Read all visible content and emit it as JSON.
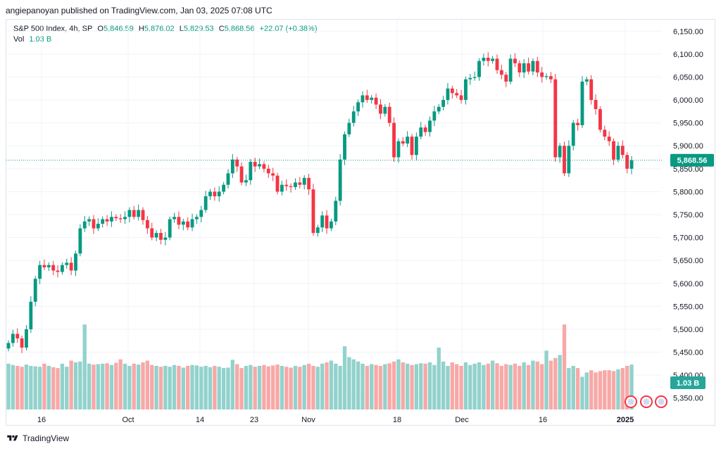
{
  "header": {
    "publisher_text": "angiepanoyan published on TradingView.com, Jan 03, 2025 07:08 UTC"
  },
  "legend": {
    "symbol": "S&P 500 Index, 4h, SP",
    "open_label": "O",
    "open": "5,846.59",
    "high_label": "H",
    "high": "5,876.02",
    "low_label": "L",
    "low": "5,829.53",
    "close_label": "C",
    "close": "5,868.56",
    "change": "+22.07 (+0.38%)",
    "vol_label": "Vol",
    "vol_value": "1.03 B"
  },
  "footer": {
    "brand": "TradingView",
    "logo_icon": "tradingview-logo-icon"
  },
  "colors": {
    "up": "#089981",
    "down": "#f23645",
    "vol_up": "#92d2cc",
    "vol_down": "#f7a9a7",
    "grid": "#f0f3fa"
  },
  "chart_data": {
    "type": "candlestick",
    "title": "S&P 500 Index, 4h, SP",
    "price_axis_ticks": [
      "6,150.00",
      "6,100.00",
      "6,050.00",
      "6,000.00",
      "5,950.00",
      "5,900.00",
      "5,850.00",
      "5,800.00",
      "5,750.00",
      "5,700.00",
      "5,650.00",
      "5,600.00",
      "5,550.00",
      "5,500.00",
      "5,450.00",
      "5,400.00",
      "5,350.00"
    ],
    "last_price_label": "5,868.56",
    "last_volume_label": "1.03 B",
    "ylim": [
      5325,
      6175
    ],
    "time_axis_labels": [
      "16",
      "Oct",
      "14",
      "23",
      "Nov",
      "18",
      "Dec",
      "16",
      "2025"
    ],
    "close": [
      5470,
      5490,
      5480,
      5460,
      5500,
      5560,
      5610,
      5640,
      5635,
      5640,
      5628,
      5625,
      5640,
      5645,
      5628,
      5665,
      5720,
      5735,
      5740,
      5720,
      5730,
      5740,
      5735,
      5745,
      5742,
      5740,
      5745,
      5760,
      5745,
      5760,
      5738,
      5720,
      5700,
      5710,
      5695,
      5700,
      5740,
      5745,
      5728,
      5735,
      5722,
      5740,
      5745,
      5760,
      5790,
      5800,
      5790,
      5800,
      5815,
      5840,
      5870,
      5855,
      5820,
      5825,
      5865,
      5855,
      5860,
      5850,
      5840,
      5835,
      5800,
      5815,
      5812,
      5810,
      5820,
      5815,
      5830,
      5805,
      5710,
      5722,
      5748,
      5720,
      5735,
      5780,
      5870,
      5925,
      5950,
      5975,
      5995,
      6010,
      6000,
      6005,
      5990,
      5970,
      5985,
      5950,
      5875,
      5910,
      5905,
      5920,
      5880,
      5920,
      5940,
      5930,
      5955,
      5975,
      5985,
      6000,
      6025,
      6015,
      6010,
      6000,
      6045,
      6048,
      6050,
      6085,
      6092,
      6085,
      6090,
      6065,
      6055,
      6040,
      6090,
      6080,
      6060,
      6080,
      6062,
      6085,
      6060,
      6050,
      6052,
      6045,
      5875,
      5900,
      5840,
      5900,
      5950,
      5945,
      6040,
      6045,
      6000,
      5980,
      5935,
      5920,
      5910,
      5870,
      5900,
      5880,
      5850,
      5868.56
    ],
    "volume_bn": [
      1.05,
      1.02,
      1.0,
      0.98,
      1.03,
      1.0,
      0.99,
      0.98,
      1.05,
      1.0,
      0.97,
      0.95,
      1.05,
      0.98,
      1.12,
      1.08,
      1.1,
      1.95,
      1.05,
      1.03,
      1.04,
      1.05,
      1.06,
      1.02,
      1.07,
      1.15,
      1.05,
      1.0,
      1.05,
      1.03,
      1.08,
      1.12,
      1.02,
      1.0,
      0.98,
      1.0,
      0.98,
      1.02,
      1.0,
      0.96,
      1.0,
      1.02,
      1.01,
      0.98,
      1.0,
      0.97,
      1.0,
      0.98,
      0.95,
      0.96,
      1.14,
      1.04,
      0.95,
      1.0,
      1.02,
      0.98,
      1.0,
      1.02,
      0.99,
      1.01,
      1.03,
      1.0,
      0.98,
      0.96,
      1.0,
      0.98,
      1.02,
      1.05,
      1.0,
      0.98,
      1.05,
      1.08,
      1.12,
      1.05,
      1.0,
      1.45,
      1.2,
      1.15,
      1.1,
      1.05,
      1.0,
      1.04,
      1.02,
      1.0,
      1.04,
      1.06,
      1.1,
      1.15,
      1.08,
      1.05,
      1.02,
      1.04,
      1.06,
      1.05,
      1.08,
      1.02,
      1.42,
      1.1,
      1.0,
      1.08,
      1.04,
      1.0,
      1.08,
      1.02,
      1.05,
      1.08,
      1.02,
      1.05,
      1.12,
      1.06,
      1.0,
      1.04,
      1.02,
      1.05,
      1.0,
      1.08,
      1.02,
      1.12,
      1.1,
      1.04,
      1.35,
      1.12,
      1.18,
      1.25,
      1.95,
      0.95,
      1.0,
      0.95,
      0.75,
      0.85,
      0.9,
      0.85,
      0.88,
      0.9,
      0.9,
      0.88,
      0.92,
      0.95,
      1.0,
      1.03
    ]
  }
}
